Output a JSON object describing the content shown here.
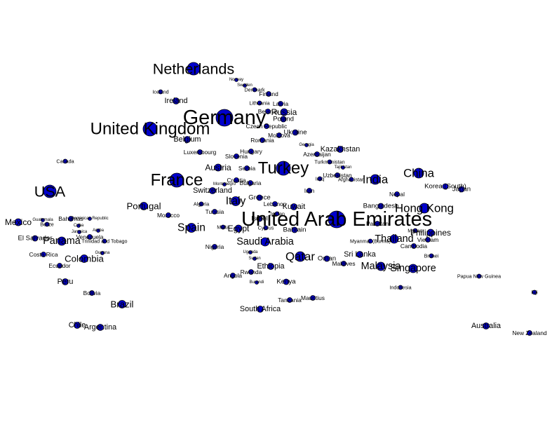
{
  "node_color": "#0000cc",
  "outline_color": "#000000",
  "nodes": [
    {
      "id": "germany",
      "label": "Germany",
      "w": 12
    },
    {
      "id": "united-arab-emirates",
      "label": "United Arab Emirates",
      "w": 12
    },
    {
      "id": "netherlands",
      "label": "Netherlands",
      "w": 9
    },
    {
      "id": "united-kingdom",
      "label": "United Kingdom",
      "w": 10
    },
    {
      "id": "usa",
      "label": "USA",
      "w": 9
    },
    {
      "id": "france",
      "label": "France",
      "w": 10
    },
    {
      "id": "turkey",
      "label": "Turkey",
      "w": 10
    },
    {
      "id": "india",
      "label": "India",
      "w": 7
    },
    {
      "id": "china",
      "label": "China",
      "w": 7
    },
    {
      "id": "hong-kong",
      "label": "Hong Kong",
      "w": 7
    },
    {
      "id": "qatar",
      "label": "Qatar",
      "w": 7
    },
    {
      "id": "singapore",
      "label": "Singapore",
      "w": 6
    },
    {
      "id": "malaysia",
      "label": "Malaysia",
      "w": 6
    },
    {
      "id": "thailand",
      "label": "Thailand",
      "w": 6
    },
    {
      "id": "spain",
      "label": "Spain",
      "w": 6.5
    },
    {
      "id": "italy",
      "label": "Italy",
      "w": 6.5
    },
    {
      "id": "portugal",
      "label": "Portugal",
      "w": 5.5
    },
    {
      "id": "saudi-arabia",
      "label": "Saudi Arabia",
      "w": 6
    },
    {
      "id": "russia",
      "label": "Russia",
      "w": 5
    },
    {
      "id": "panama",
      "label": "Panama",
      "w": 6
    },
    {
      "id": "colombia",
      "label": "Colombia",
      "w": 5.5
    },
    {
      "id": "mexico",
      "label": "Mexico",
      "w": 5
    },
    {
      "id": "brazil",
      "label": "Brazil",
      "w": 5.5
    },
    {
      "id": "austria",
      "label": "Austria",
      "w": 5
    },
    {
      "id": "philippines",
      "label": "Philippines",
      "w": 5
    },
    {
      "id": "egypt",
      "label": "Egypt",
      "w": 5
    },
    {
      "id": "ethiopia",
      "label": "Ethiopia",
      "w": 4.5
    },
    {
      "id": "kuwait",
      "label": "Kuwait",
      "w": 4.5
    },
    {
      "id": "ireland",
      "label": "Ireland",
      "w": 4.5
    },
    {
      "id": "belgium",
      "label": "Belgium",
      "w": 4.5
    },
    {
      "id": "kazakhstan",
      "label": "Kazakhstan",
      "w": 4.5
    },
    {
      "id": "sri-lanka",
      "label": "Sri Lanka",
      "w": 4.5
    },
    {
      "id": "peru",
      "label": "Peru",
      "w": 4.5
    },
    {
      "id": "argentina",
      "label": "Argentina",
      "w": 4.5
    },
    {
      "id": "chile",
      "label": "Chile",
      "w": 4.5
    },
    {
      "id": "australia",
      "label": "Australia",
      "w": 4.5
    },
    {
      "id": "south-africa",
      "label": "South Africa",
      "w": 4.5
    },
    {
      "id": "kenya",
      "label": "Kenya",
      "w": 4
    },
    {
      "id": "switzerland",
      "label": "Switzerland",
      "w": 4.5
    },
    {
      "id": "bahrain",
      "label": "Bahrain",
      "w": 4
    },
    {
      "id": "oman",
      "label": "Oman",
      "w": 4
    },
    {
      "id": "korea-south",
      "label": "Korea (South)",
      "w": 4
    },
    {
      "id": "japan",
      "label": "Japan",
      "w": 4
    },
    {
      "id": "bangladesh",
      "label": "Bangladesh",
      "w": 4
    },
    {
      "id": "nepal",
      "label": "Nepal",
      "w": 3.5
    },
    {
      "id": "pakistan",
      "label": "Pakistan",
      "w": 3.5
    },
    {
      "id": "myanmar-burma",
      "label": "Myanmar (Burma)",
      "w": 3
    },
    {
      "id": "vietnam",
      "label": "Vietnam",
      "w": 3.5
    },
    {
      "id": "cambodia",
      "label": "Cambodia",
      "w": 3.5
    },
    {
      "id": "brunei",
      "label": "Brunei",
      "w": 3
    },
    {
      "id": "macau",
      "label": "Macau",
      "w": 3
    },
    {
      "id": "maldives",
      "label": "Maldives",
      "w": 3.5
    },
    {
      "id": "indonesia",
      "label": "Indonesia",
      "w": 3
    },
    {
      "id": "papua-new-guinea",
      "label": "Papua New Guinea",
      "w": 3
    },
    {
      "id": "new-zealand",
      "label": "New Zealand",
      "w": 3.5
    },
    {
      "id": "fiji",
      "label": "Fiji",
      "w": 3
    },
    {
      "id": "iran",
      "label": "Iran",
      "w": 3.5
    },
    {
      "id": "azerbaijan",
      "label": "Azerbaijan",
      "w": 3.5
    },
    {
      "id": "turkmenistan",
      "label": "Turkmenistan",
      "w": 3
    },
    {
      "id": "uzbekistan",
      "label": "Uzbekistan",
      "w": 3.5
    },
    {
      "id": "afghanistan",
      "label": "Afghanistan",
      "w": 3
    },
    {
      "id": "georgia",
      "label": "Georgia",
      "w": 2.5
    },
    {
      "id": "tajikistan",
      "label": "Tajikistan",
      "w": 2.5
    },
    {
      "id": "iraq",
      "label": "Iraq",
      "w": 3
    },
    {
      "id": "ukraine",
      "label": "Ukraine",
      "w": 4
    },
    {
      "id": "moldova",
      "label": "Moldova",
      "w": 3.5
    },
    {
      "id": "romania",
      "label": "Romania",
      "w": 3.5
    },
    {
      "id": "hungary",
      "label": "Hungary",
      "w": 3.5
    },
    {
      "id": "czech-republic",
      "label": "Czech Republic",
      "w": 3.5
    },
    {
      "id": "poland",
      "label": "Poland",
      "w": 4
    },
    {
      "id": "latvia",
      "label": "Latvia",
      "w": 3.5
    },
    {
      "id": "lithuania",
      "label": "Lithuania",
      "w": 3
    },
    {
      "id": "belarus",
      "label": "Belarus",
      "w": 3.5
    },
    {
      "id": "finland",
      "label": "Finland",
      "w": 3.5
    },
    {
      "id": "denmark",
      "label": "Denmark",
      "w": 3
    },
    {
      "id": "norway",
      "label": "Norway",
      "w": 2.5
    },
    {
      "id": "sweden",
      "label": "Sweden",
      "w": 2.5
    },
    {
      "id": "iceland",
      "label": "Iceland",
      "w": 3
    },
    {
      "id": "luxembourg",
      "label": "Luxembourg",
      "w": 3.5
    },
    {
      "id": "slovenia",
      "label": "Slovenia",
      "w": 3.5
    },
    {
      "id": "serbia",
      "label": "Serbia",
      "w": 3.5
    },
    {
      "id": "croatia",
      "label": "Croatia",
      "w": 3.5
    },
    {
      "id": "bulgaria",
      "label": "Bulgaria",
      "w": 3.5
    },
    {
      "id": "montenegro",
      "label": "Montenegro",
      "w": 2.5
    },
    {
      "id": "greece",
      "label": "Greece",
      "w": 4
    },
    {
      "id": "lebanon",
      "label": "Lebanon",
      "w": 3.5
    },
    {
      "id": "jordan",
      "label": "Jordan",
      "w": 3
    },
    {
      "id": "israel",
      "label": "Israel",
      "w": 4
    },
    {
      "id": "cyprus",
      "label": "Cyprus",
      "w": 3
    },
    {
      "id": "malta",
      "label": "Malta",
      "w": 3
    },
    {
      "id": "tunisia",
      "label": "Tunisia",
      "w": 3.5
    },
    {
      "id": "algeria",
      "label": "Algeria",
      "w": 3
    },
    {
      "id": "morocco",
      "label": "Morocco",
      "w": 3.5
    },
    {
      "id": "nigeria",
      "label": "Nigeria",
      "w": 3.5
    },
    {
      "id": "angola",
      "label": "Angola",
      "w": 3.5
    },
    {
      "id": "rwanda",
      "label": "Rwanda",
      "w": 3.5
    },
    {
      "id": "uganda",
      "label": "Uganda",
      "w": 2.5
    },
    {
      "id": "sudan",
      "label": "Sudan",
      "w": 2.5
    },
    {
      "id": "burundi",
      "label": "Burundi",
      "w": 2.5
    },
    {
      "id": "tanzania",
      "label": "Tanzania",
      "w": 3.5
    },
    {
      "id": "mauritius",
      "label": "Mauritius",
      "w": 3.5
    },
    {
      "id": "canada",
      "label": "Canada",
      "w": 3
    },
    {
      "id": "el-salvador",
      "label": "El Salvador",
      "w": 4
    },
    {
      "id": "guatemala",
      "label": "Guatemala",
      "w": 2.5
    },
    {
      "id": "belize",
      "label": "Belize",
      "w": 3
    },
    {
      "id": "bahamas",
      "label": "Bahamas",
      "w": 3.5
    },
    {
      "id": "dominican-republic",
      "label": "Dominican Republic",
      "w": 2.5
    },
    {
      "id": "cuba",
      "label": "Cuba",
      "w": 2.5
    },
    {
      "id": "jamaica",
      "label": "Jamaica",
      "w": 2.5
    },
    {
      "id": "venezuela",
      "label": "Venezuela",
      "w": 3.5
    },
    {
      "id": "trinidad-and-tobago",
      "label": "Trinidad and Tobago",
      "w": 3
    },
    {
      "id": "aruba",
      "label": "Aruba",
      "w": 2.5
    },
    {
      "id": "costa-rica",
      "label": "Costa Rica",
      "w": 3.5
    },
    {
      "id": "ecuador",
      "label": "Ecuador",
      "w": 3.5
    },
    {
      "id": "guyana",
      "label": "Guyana",
      "w": 2.5
    },
    {
      "id": "bolivia",
      "label": "Bolivia",
      "w": 3.5
    }
  ]
}
